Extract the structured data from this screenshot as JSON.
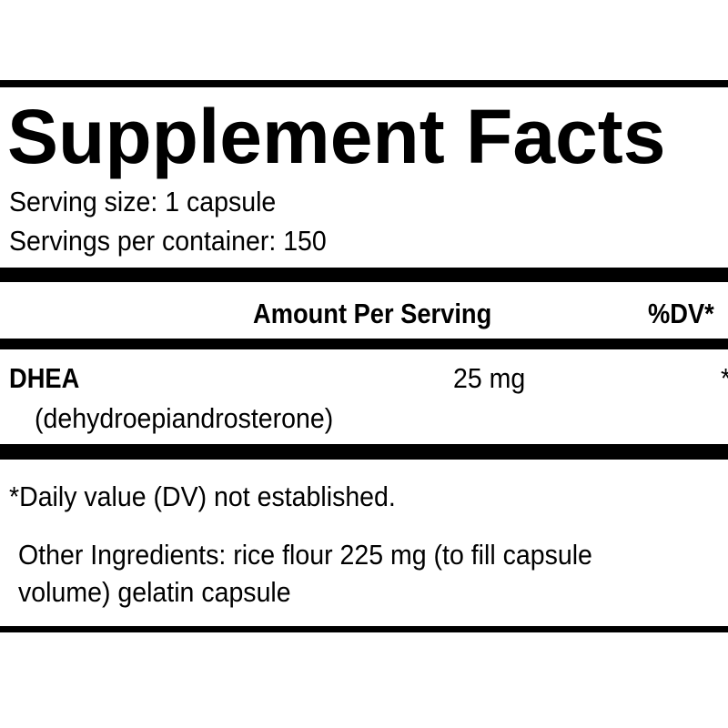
{
  "header": {
    "title": "Supplement Facts",
    "serving_size": "Serving size: 1 capsule",
    "servings_per_container": "Servings per container: 150"
  },
  "table": {
    "columns": {
      "amount": "Amount Per Serving",
      "dv": "%DV*"
    },
    "rows": [
      {
        "name": "DHEA",
        "description": "(dehydroepiandrosterone)",
        "amount": "25 mg",
        "dv": "*"
      }
    ]
  },
  "footnote": "*Daily value (DV) not established.",
  "other_ingredients": [
    "Other Ingredients:  rice flour 225 mg (to fill capsule",
    "volume)  gelatin capsule"
  ]
}
